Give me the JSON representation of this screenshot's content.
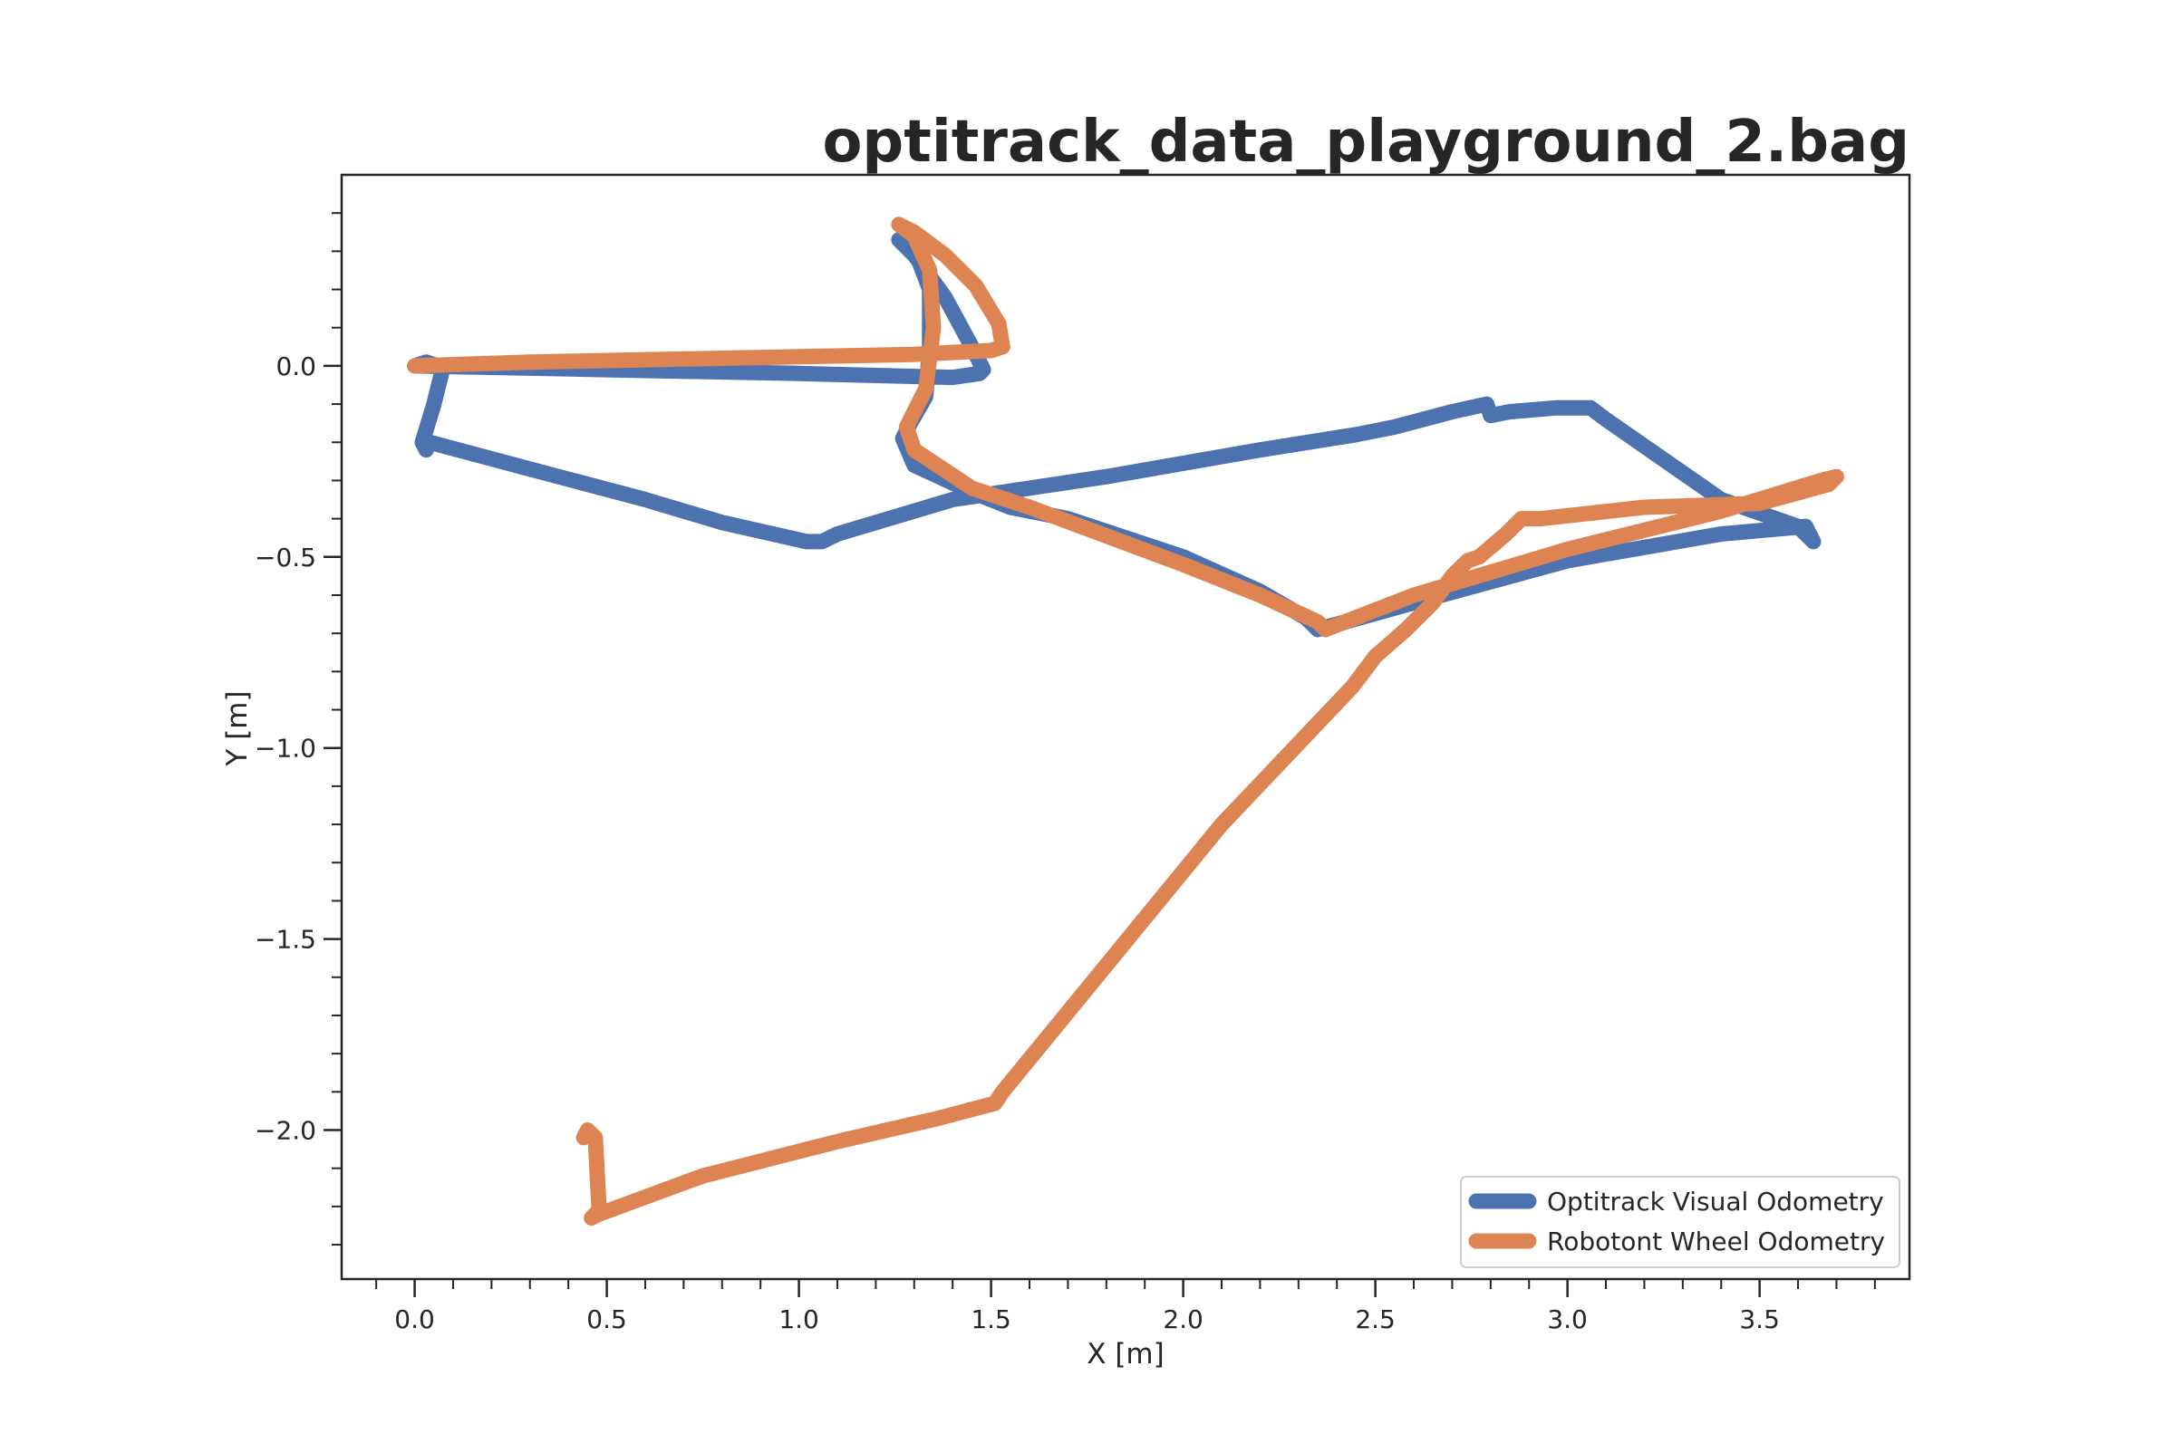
{
  "chart_data": {
    "type": "line",
    "title": "optitrack_data_playground_2.bag",
    "xlabel": "X [m]",
    "ylabel": "Y [m]",
    "xlim": [
      -0.19,
      3.89
    ],
    "ylim": [
      -2.39,
      0.5
    ],
    "x_ticks": [
      {
        "value": 0.0,
        "label": "0.0"
      },
      {
        "value": 0.5,
        "label": "0.5"
      },
      {
        "value": 1.0,
        "label": "1.0"
      },
      {
        "value": 1.5,
        "label": "1.5"
      },
      {
        "value": 2.0,
        "label": "2.0"
      },
      {
        "value": 2.5,
        "label": "2.5"
      },
      {
        "value": 3.0,
        "label": "3.0"
      },
      {
        "value": 3.5,
        "label": "3.5"
      }
    ],
    "y_ticks": [
      {
        "value": 0.0,
        "label": "0.0"
      },
      {
        "value": -0.5,
        "label": "−0.5"
      },
      {
        "value": -1.0,
        "label": "−1.0"
      },
      {
        "value": -1.5,
        "label": "−1.5"
      },
      {
        "value": -2.0,
        "label": "−2.0"
      }
    ],
    "minor_tick_step": 0.1,
    "grid": false,
    "legend_position": "bottom-right",
    "series": [
      {
        "name": "Optitrack Visual Odometry",
        "color": "#4c72b0",
        "points": [
          [
            0.03,
            -0.22
          ],
          [
            0.02,
            -0.2
          ],
          [
            0.05,
            -0.1
          ],
          [
            0.07,
            -0.02
          ],
          [
            0.06,
            0.0
          ],
          [
            0.03,
            0.01
          ],
          [
            0.0,
            0.0
          ],
          [
            0.5,
            -0.01
          ],
          [
            1.0,
            -0.02
          ],
          [
            1.4,
            -0.03
          ],
          [
            1.47,
            -0.02
          ],
          [
            1.48,
            -0.01
          ],
          [
            1.45,
            0.05
          ],
          [
            1.38,
            0.18
          ],
          [
            1.3,
            0.29
          ],
          [
            1.26,
            0.33
          ],
          [
            1.31,
            0.28
          ],
          [
            1.34,
            0.2
          ],
          [
            1.34,
            0.05
          ],
          [
            1.33,
            -0.08
          ],
          [
            1.29,
            -0.15
          ],
          [
            1.27,
            -0.19
          ],
          [
            1.3,
            -0.26
          ],
          [
            1.45,
            -0.33
          ],
          [
            1.55,
            -0.37
          ],
          [
            1.7,
            -0.4
          ],
          [
            2.0,
            -0.5
          ],
          [
            2.2,
            -0.59
          ],
          [
            2.32,
            -0.66
          ],
          [
            2.35,
            -0.69
          ],
          [
            2.6,
            -0.62
          ],
          [
            3.0,
            -0.51
          ],
          [
            3.4,
            -0.44
          ],
          [
            3.62,
            -0.42
          ],
          [
            3.64,
            -0.46
          ],
          [
            3.6,
            -0.42
          ],
          [
            3.4,
            -0.35
          ],
          [
            3.1,
            -0.14
          ],
          [
            3.06,
            -0.11
          ],
          [
            2.97,
            -0.11
          ],
          [
            2.85,
            -0.12
          ],
          [
            2.8,
            -0.13
          ],
          [
            2.79,
            -0.1
          ],
          [
            2.7,
            -0.12
          ],
          [
            2.55,
            -0.16
          ],
          [
            2.45,
            -0.18
          ],
          [
            2.2,
            -0.22
          ],
          [
            1.8,
            -0.29
          ],
          [
            1.4,
            -0.35
          ],
          [
            1.1,
            -0.44
          ],
          [
            1.06,
            -0.46
          ],
          [
            1.02,
            -0.46
          ],
          [
            0.8,
            -0.41
          ],
          [
            0.6,
            -0.35
          ],
          [
            0.3,
            -0.27
          ],
          [
            0.04,
            -0.2
          ]
        ]
      },
      {
        "name": "Robotont Wheel Odometry",
        "color": "#dd8452",
        "points": [
          [
            0.0,
            0.0
          ],
          [
            0.3,
            0.01
          ],
          [
            0.8,
            0.02
          ],
          [
            1.3,
            0.03
          ],
          [
            1.5,
            0.04
          ],
          [
            1.53,
            0.05
          ],
          [
            1.52,
            0.11
          ],
          [
            1.46,
            0.21
          ],
          [
            1.38,
            0.29
          ],
          [
            1.3,
            0.35
          ],
          [
            1.26,
            0.37
          ],
          [
            1.3,
            0.34
          ],
          [
            1.34,
            0.25
          ],
          [
            1.35,
            0.1
          ],
          [
            1.33,
            -0.06
          ],
          [
            1.28,
            -0.16
          ],
          [
            1.3,
            -0.22
          ],
          [
            1.45,
            -0.32
          ],
          [
            1.6,
            -0.37
          ],
          [
            2.0,
            -0.52
          ],
          [
            2.2,
            -0.6
          ],
          [
            2.35,
            -0.67
          ],
          [
            2.37,
            -0.69
          ],
          [
            2.6,
            -0.6
          ],
          [
            3.0,
            -0.48
          ],
          [
            3.4,
            -0.38
          ],
          [
            3.66,
            -0.3
          ],
          [
            3.7,
            -0.29
          ],
          [
            3.68,
            -0.31
          ],
          [
            3.5,
            -0.36
          ],
          [
            3.2,
            -0.37
          ],
          [
            2.93,
            -0.4
          ],
          [
            2.88,
            -0.4
          ],
          [
            2.84,
            -0.44
          ],
          [
            2.77,
            -0.5
          ],
          [
            2.74,
            -0.51
          ],
          [
            2.7,
            -0.55
          ],
          [
            2.65,
            -0.62
          ],
          [
            2.58,
            -0.69
          ],
          [
            2.5,
            -0.76
          ],
          [
            2.44,
            -0.84
          ],
          [
            2.1,
            -1.2
          ],
          [
            1.53,
            -1.9
          ],
          [
            1.51,
            -1.93
          ],
          [
            1.36,
            -1.97
          ],
          [
            1.1,
            -2.03
          ],
          [
            0.75,
            -2.12
          ],
          [
            0.48,
            -2.22
          ],
          [
            0.46,
            -2.23
          ],
          [
            0.48,
            -2.21
          ],
          [
            0.47,
            -2.02
          ],
          [
            0.45,
            -2.0
          ],
          [
            0.44,
            -2.02
          ]
        ]
      }
    ]
  }
}
